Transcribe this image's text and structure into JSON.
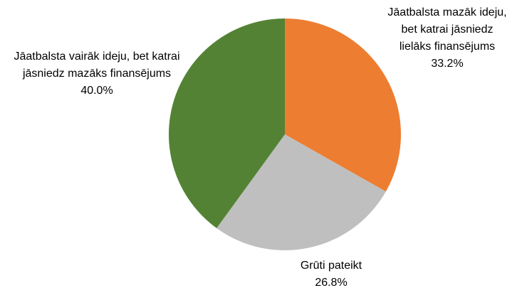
{
  "chart_data": {
    "type": "pie",
    "categories": [
      "Jāatbalsta mazāk ideju, bet katrai jāsniedz lielāks finansējums",
      "Grūti pateikt",
      "Jāatbalsta vairāk ideju, bet katrai jāsniedz mazāks finansējums"
    ],
    "values": [
      33.2,
      26.8,
      40.0
    ],
    "value_labels": [
      "33.2%",
      "26.8%",
      "40.0%"
    ],
    "colors": [
      "#ed7d31",
      "#bfbfbf",
      "#548235"
    ]
  }
}
